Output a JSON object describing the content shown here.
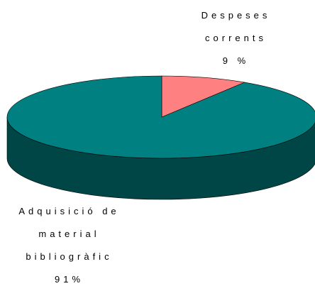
{
  "chart_data": {
    "type": "pie",
    "categories": [
      "Despeses corrents",
      "Adquisició de material bibliogràfic"
    ],
    "values": [
      9,
      91
    ],
    "value_labels": [
      "9 %",
      "91%"
    ],
    "colors": [
      "#ff8080",
      "#008080"
    ]
  }
}
